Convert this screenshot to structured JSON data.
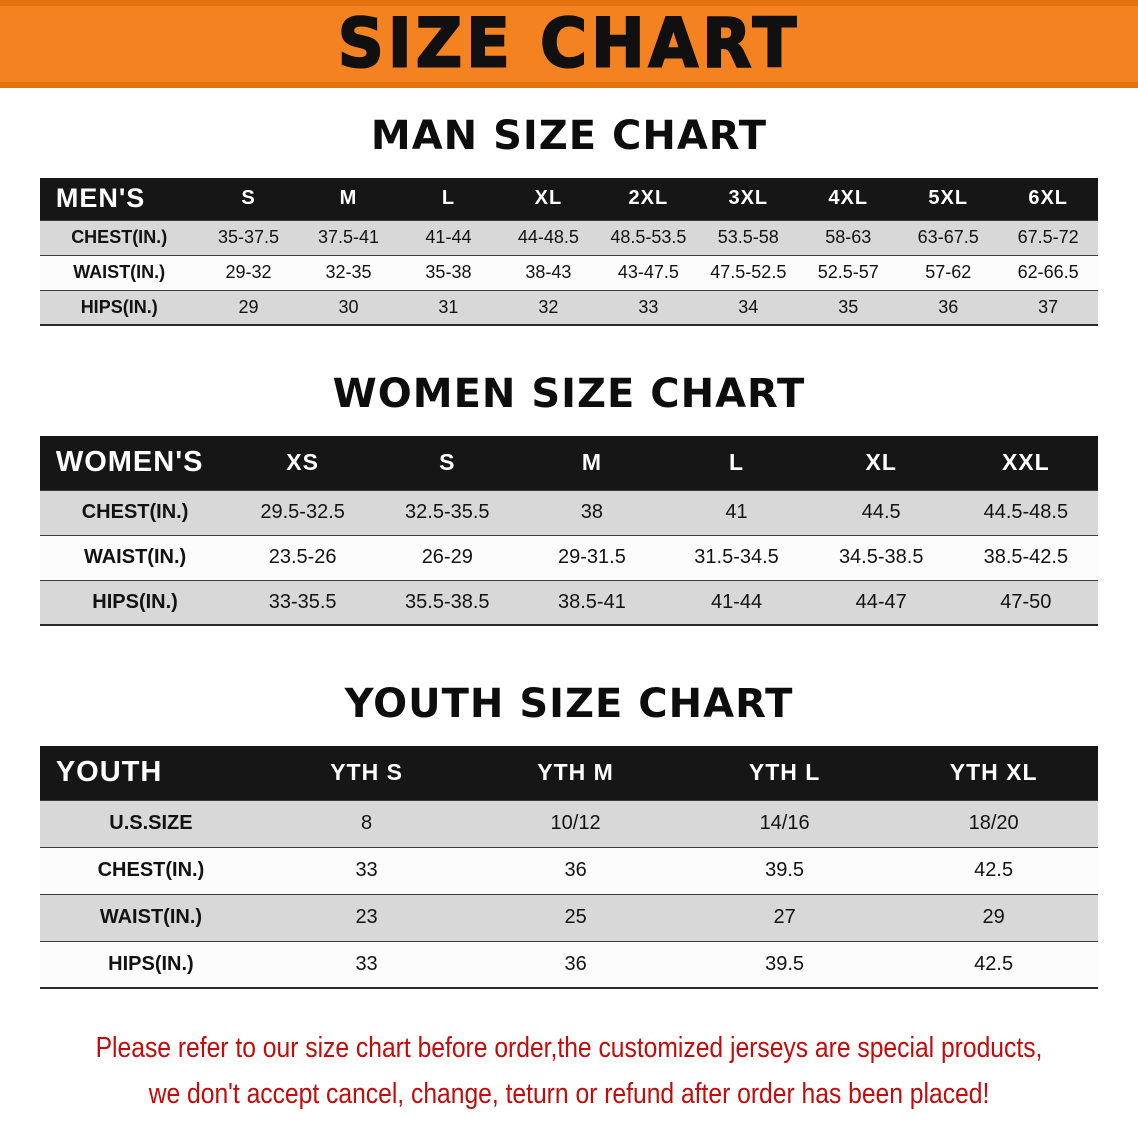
{
  "banner": {
    "title": "SIZE CHART"
  },
  "colors": {
    "banner_orange": "#f58220",
    "banner_edge": "#e2720d",
    "header_black": "#161616",
    "row_gray": "#d8d8d8",
    "disclaimer_red": "#c30b0b"
  },
  "chart_data": [
    {
      "type": "table",
      "title": "MAN SIZE CHART",
      "header": [
        "MEN'S",
        "S",
        "M",
        "L",
        "XL",
        "2XL",
        "3XL",
        "4XL",
        "5XL",
        "6XL"
      ],
      "rows": [
        [
          "CHEST(IN.)",
          "35-37.5",
          "37.5-41",
          "41-44",
          "44-48.5",
          "48.5-53.5",
          "53.5-58",
          "58-63",
          "63-67.5",
          "67.5-72"
        ],
        [
          "WAIST(IN.)",
          "29-32",
          "32-35",
          "35-38",
          "38-43",
          "43-47.5",
          "47.5-52.5",
          "52.5-57",
          "57-62",
          "62-66.5"
        ],
        [
          "HIPS(IN.)",
          "29",
          "30",
          "31",
          "32",
          "33",
          "34",
          "35",
          "36",
          "37"
        ]
      ]
    },
    {
      "type": "table",
      "title": "WOMEN SIZE CHART",
      "header": [
        "WOMEN'S",
        "XS",
        "S",
        "M",
        "L",
        "XL",
        "XXL"
      ],
      "rows": [
        [
          "CHEST(IN.)",
          "29.5-32.5",
          "32.5-35.5",
          "38",
          "41",
          "44.5",
          "44.5-48.5"
        ],
        [
          "WAIST(IN.)",
          "23.5-26",
          "26-29",
          "29-31.5",
          "31.5-34.5",
          "34.5-38.5",
          "38.5-42.5"
        ],
        [
          "HIPS(IN.)",
          "33-35.5",
          "35.5-38.5",
          "38.5-41",
          "41-44",
          "44-47",
          "47-50"
        ]
      ]
    },
    {
      "type": "table",
      "title": "YOUTH SIZE CHART",
      "header": [
        "YOUTH",
        "YTH S",
        "YTH M",
        "YTH L",
        "YTH XL"
      ],
      "rows": [
        [
          "U.S.SIZE",
          "8",
          "10/12",
          "14/16",
          "18/20"
        ],
        [
          "CHEST(IN.)",
          "33",
          "36",
          "39.5",
          "42.5"
        ],
        [
          "WAIST(IN.)",
          "23",
          "25",
          "27",
          "29"
        ],
        [
          "HIPS(IN.)",
          "33",
          "36",
          "39.5",
          "42.5"
        ]
      ]
    }
  ],
  "disclaimer": {
    "line1": "Please refer to our size chart before order,the customized jerseys are special products,",
    "line2": "we don't accept cancel, change, teturn or refund after order has been placed!"
  }
}
